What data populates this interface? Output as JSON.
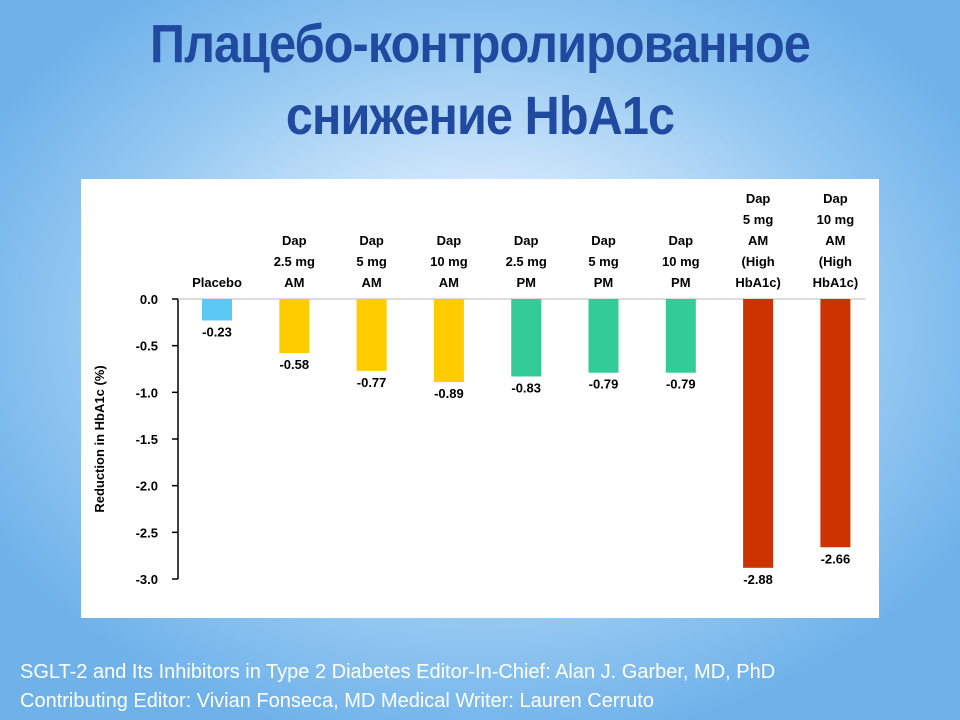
{
  "slide": {
    "title_line1": "Плацебо-контролированное",
    "title_line2": "снижение HbA1c",
    "source_line1": "SGLT-2 and Its Inhibitors in Type 2 Diabetes Editor-In-Chief: Alan J. Garber, MD, PhD",
    "source_line2": "Contributing Editor: Vivian Fonseca, MD Medical Writer: Lauren Cerruto"
  },
  "chart_data": {
    "type": "bar",
    "title": "",
    "xlabel": "",
    "ylabel": "Reduction in HbA1c (%)",
    "ylim": [
      -3.0,
      0.0
    ],
    "yticks": [
      "0.0",
      "-0.5",
      "-1.0",
      "-1.5",
      "-2.0",
      "-2.5",
      "-3.0"
    ],
    "ytick_values": [
      0.0,
      -0.5,
      -1.0,
      -1.5,
      -2.0,
      -2.5,
      -3.0
    ],
    "grid": false,
    "categories": [
      [
        "Placebo"
      ],
      [
        "Dap",
        "2.5 mg",
        "AM"
      ],
      [
        "Dap",
        "5 mg",
        "AM"
      ],
      [
        "Dap",
        "10 mg",
        "AM"
      ],
      [
        "Dap",
        "2.5 mg",
        "PM"
      ],
      [
        "Dap",
        "5 mg",
        "PM"
      ],
      [
        "Dap",
        "10 mg",
        "PM"
      ],
      [
        "Dap",
        "5 mg",
        "AM",
        "(High",
        "HbA1c)"
      ],
      [
        "Dap",
        "10 mg",
        "AM",
        "(High",
        "HbA1c)"
      ]
    ],
    "values": [
      -0.23,
      -0.58,
      -0.77,
      -0.89,
      -0.83,
      -0.79,
      -0.79,
      -2.88,
      -2.66
    ],
    "value_labels": [
      "-0.23",
      "-0.58",
      "-0.77",
      "-0.89",
      "-0.83",
      "-0.79",
      "-0.79",
      "-2.88",
      "-2.66"
    ],
    "bar_colors": [
      "#5bc8f5",
      "#ffcc00",
      "#ffcc00",
      "#ffcc00",
      "#33cc99",
      "#33cc99",
      "#33cc99",
      "#cc3300",
      "#cc3300"
    ]
  }
}
